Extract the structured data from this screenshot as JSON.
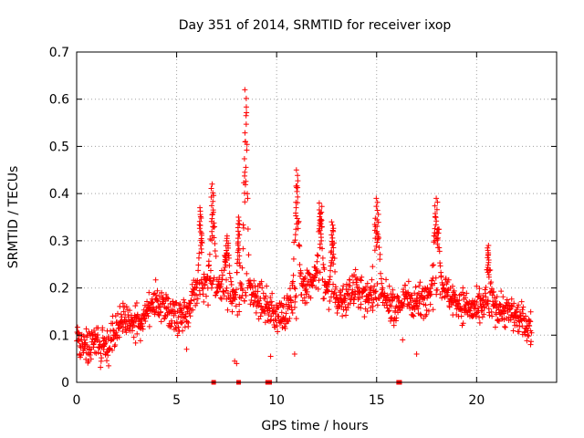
{
  "chart_data": {
    "type": "scatter",
    "title": "Day 351 of 2014, SRMTID for receiver ixop",
    "xlabel": "GPS time / hours",
    "ylabel": "SRMTID / TECUs",
    "xlim": [
      0,
      24
    ],
    "ylim": [
      0,
      0.7
    ],
    "grid": true,
    "marker": "+",
    "color": "#ff0000",
    "x_ticks": [
      0,
      5,
      10,
      15,
      20
    ],
    "x_tick_labels": [
      "0",
      "5",
      "10",
      "15",
      "20"
    ],
    "y_ticks": [
      0,
      0.1,
      0.2,
      0.3,
      0.4,
      0.5,
      0.6,
      0.7
    ],
    "y_tick_labels": [
      "0",
      "0.1",
      "0.2",
      "0.3",
      "0.4",
      "0.5",
      "0.6",
      "0.7"
    ],
    "profile": [
      [
        0.0,
        0.09
      ],
      [
        0.5,
        0.08
      ],
      [
        1.0,
        0.09
      ],
      [
        1.5,
        0.07
      ],
      [
        2.0,
        0.12
      ],
      [
        2.5,
        0.13
      ],
      [
        3.0,
        0.12
      ],
      [
        3.5,
        0.15
      ],
      [
        4.0,
        0.17
      ],
      [
        4.5,
        0.16
      ],
      [
        5.0,
        0.14
      ],
      [
        5.5,
        0.15
      ],
      [
        6.0,
        0.19
      ],
      [
        6.5,
        0.21
      ],
      [
        7.0,
        0.2
      ],
      [
        7.5,
        0.19
      ],
      [
        8.0,
        0.17
      ],
      [
        8.5,
        0.19
      ],
      [
        9.0,
        0.18
      ],
      [
        9.5,
        0.16
      ],
      [
        10.0,
        0.14
      ],
      [
        10.5,
        0.15
      ],
      [
        11.0,
        0.18
      ],
      [
        11.5,
        0.21
      ],
      [
        12.0,
        0.22
      ],
      [
        12.5,
        0.19
      ],
      [
        13.0,
        0.17
      ],
      [
        13.5,
        0.18
      ],
      [
        14.0,
        0.2
      ],
      [
        14.5,
        0.18
      ],
      [
        15.0,
        0.19
      ],
      [
        15.5,
        0.17
      ],
      [
        16.0,
        0.16
      ],
      [
        16.5,
        0.18
      ],
      [
        17.0,
        0.17
      ],
      [
        17.5,
        0.18
      ],
      [
        18.0,
        0.2
      ],
      [
        18.5,
        0.19
      ],
      [
        19.0,
        0.17
      ],
      [
        19.5,
        0.16
      ],
      [
        20.0,
        0.15
      ],
      [
        20.5,
        0.17
      ],
      [
        21.0,
        0.16
      ],
      [
        21.5,
        0.15
      ],
      [
        22.0,
        0.14
      ],
      [
        22.5,
        0.12
      ],
      [
        22.75,
        0.12
      ]
    ],
    "spikes": [
      {
        "x": 6.8,
        "width": 0.25,
        "peak": 0.42
      },
      {
        "x": 6.2,
        "width": 0.2,
        "peak": 0.37
      },
      {
        "x": 7.5,
        "width": 0.3,
        "peak": 0.31
      },
      {
        "x": 8.45,
        "width": 0.2,
        "peak": 0.62
      },
      {
        "x": 8.1,
        "width": 0.15,
        "peak": 0.35
      },
      {
        "x": 11.0,
        "width": 0.25,
        "peak": 0.45
      },
      {
        "x": 12.2,
        "width": 0.25,
        "peak": 0.38
      },
      {
        "x": 12.8,
        "width": 0.2,
        "peak": 0.34
      },
      {
        "x": 15.0,
        "width": 0.3,
        "peak": 0.39
      },
      {
        "x": 18.0,
        "width": 0.3,
        "peak": 0.39
      },
      {
        "x": 20.6,
        "width": 0.2,
        "peak": 0.29
      }
    ],
    "dips": [
      {
        "x": 7.9,
        "y": 0.045
      },
      {
        "x": 8.0,
        "y": 0.04
      },
      {
        "x": 9.7,
        "y": 0.055
      },
      {
        "x": 1.6,
        "y": 0.035
      },
      {
        "x": 0.6,
        "y": 0.045
      },
      {
        "x": 17.0,
        "y": 0.06
      },
      {
        "x": 10.9,
        "y": 0.06
      },
      {
        "x": 16.3,
        "y": 0.09
      },
      {
        "x": 5.5,
        "y": 0.07
      },
      {
        "x": 22.7,
        "y": 0.08
      }
    ],
    "zero_points": [
      6.85,
      8.1,
      9.55,
      9.65,
      16.1,
      16.15
    ]
  }
}
